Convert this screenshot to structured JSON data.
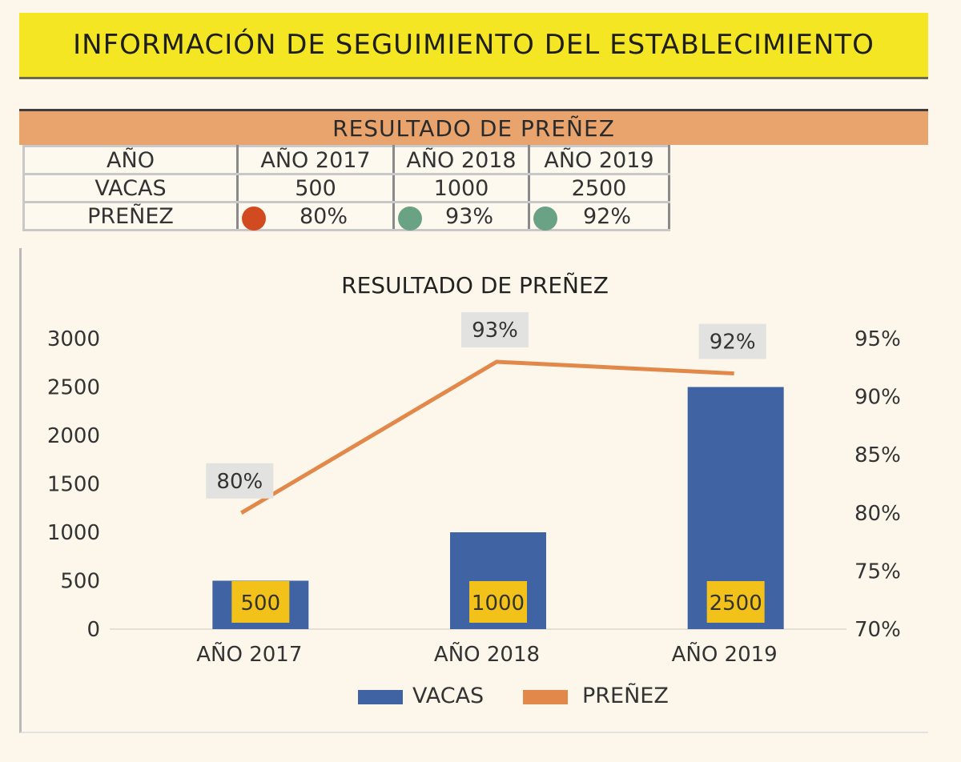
{
  "header": {
    "title": "INFORMACIÓN DE SEGUIMIENTO DEL ESTABLECIMIENTO",
    "section_title": "RESULTADO DE PREÑEZ"
  },
  "table": {
    "row_labels": [
      "AÑO",
      "VACAS",
      "PREÑEZ"
    ],
    "years": [
      "AÑO 2017",
      "AÑO 2018",
      "AÑO 2019"
    ],
    "vacas": [
      "500",
      "1000",
      "2500"
    ],
    "prenez": [
      "80%",
      "93%",
      "92%"
    ],
    "status_colors": [
      "#d24b20",
      "#6aa286",
      "#6aa286"
    ]
  },
  "chart_data": {
    "type": "bar",
    "title": "RESULTADO DE PREÑEZ",
    "categories": [
      "AÑO 2017",
      "AÑO 2018",
      "AÑO 2019"
    ],
    "series": [
      {
        "name": "VACAS",
        "type": "bar",
        "axis": "left",
        "values": [
          500,
          1000,
          2500
        ],
        "labels": [
          "500",
          "1000",
          "2500"
        ],
        "color": "#3f63a3"
      },
      {
        "name": "PREÑEZ",
        "type": "line",
        "axis": "right",
        "values": [
          80,
          93,
          92
        ],
        "labels": [
          "80%",
          "93%",
          "92%"
        ],
        "color": "#e2884a"
      }
    ],
    "y_left": {
      "min": 0,
      "max": 3000,
      "ticks": [
        "0",
        "500",
        "1000",
        "1500",
        "2000",
        "2500",
        "3000"
      ]
    },
    "y_right": {
      "min": 70,
      "max": 95,
      "ticks": [
        "70%",
        "75%",
        "80%",
        "85%",
        "90%",
        "95%"
      ]
    },
    "legend_position": "bottom",
    "grid": false
  }
}
